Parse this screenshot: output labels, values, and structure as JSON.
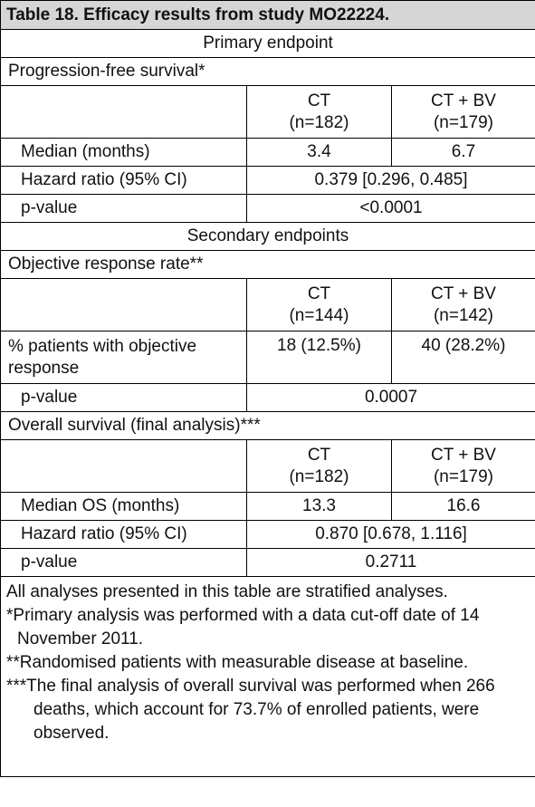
{
  "title": "Table 18. Efficacy results from study MO22224.",
  "rows": [
    [
      "Primary endpoint"
    ],
    [
      "Progression-free survival*"
    ],
    [
      "CT\n(n=182)",
      "CT + BV\n(n=179)"
    ],
    [
      "Median (months)",
      "3.4",
      "6.7"
    ],
    [
      "Hazard ratio (95% CI)",
      "0.379 [0.296, 0.485]"
    ],
    [
      "p-value",
      "<0.0001"
    ],
    [
      "Secondary endpoints"
    ],
    [
      "Objective response rate**"
    ],
    [
      "CT\n(n=144)",
      "CT + BV\n(n=142)"
    ],
    [
      "% patients with objective response",
      "18 (12.5%)",
      "40 (28.2%)"
    ],
    [
      "p-value",
      "0.0007"
    ],
    [
      "Overall survival (final analysis)***"
    ],
    [
      "CT\n(n=182)",
      "CT + BV\n(n=179)"
    ],
    [
      "Median OS (months)",
      "13.3",
      "16.6"
    ],
    [
      "Hazard ratio (95% CI)",
      "0.870 [0.678, 1.116]"
    ],
    [
      "p-value",
      "0.2711"
    ]
  ],
  "footnotes": [
    "All analyses presented in this table are stratified analyses.",
    "*Primary analysis was performed with a data cut-off date of 14 November 2011.",
    "**Randomised patients with measurable disease at baseline.",
    "***The final analysis of overall survival was performed when 266 deaths, which account for 73.7% of enrolled patients, were observed."
  ]
}
